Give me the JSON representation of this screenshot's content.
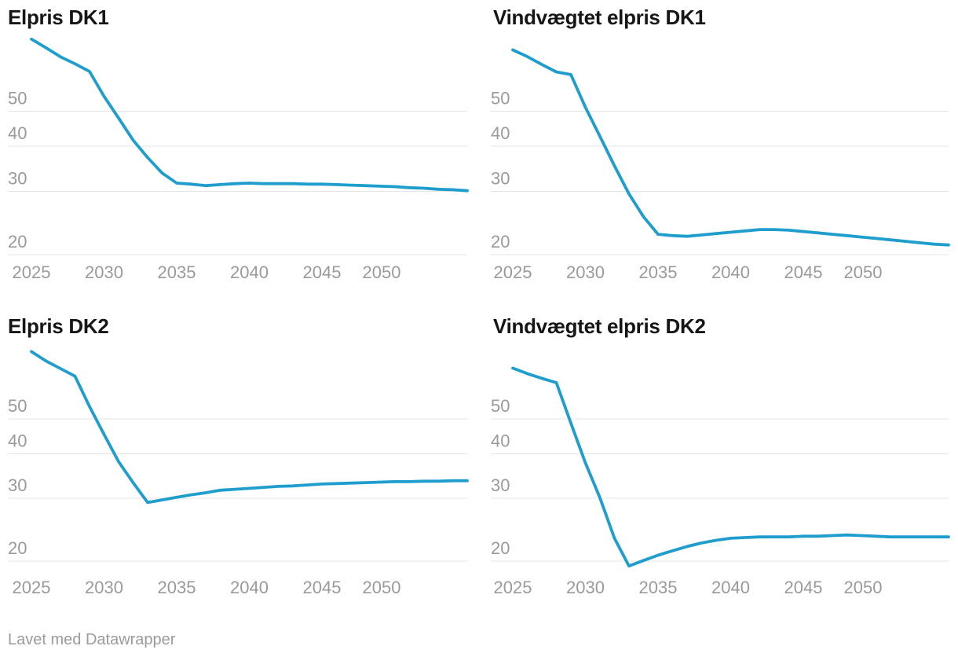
{
  "style": {
    "line_color": "#1f9ecd",
    "grid_color": "#e4e4e4",
    "axis_label_color": "#9a9a9a",
    "title_color": "#161616"
  },
  "footer": {
    "credit_text": "Lavet med Datawrapper"
  },
  "chart_data": [
    {
      "type": "line",
      "title": "Elpris DK1",
      "y_scale": "log",
      "grid": true,
      "y_ticks": [
        50,
        40,
        30,
        20
      ],
      "x_ticks": [
        2025,
        2030,
        2035,
        2040,
        2045,
        2050
      ],
      "x": [
        2025,
        2026,
        2027,
        2028,
        2029,
        2030,
        2031,
        2032,
        2033,
        2034,
        2035,
        2036,
        2037,
        2038,
        2039,
        2040,
        2041,
        2042,
        2043,
        2044,
        2045,
        2046,
        2047,
        2048,
        2049,
        2050,
        2051,
        2052,
        2053,
        2054,
        2055
      ],
      "values": [
        79.3,
        75.0,
        70.8,
        67.7,
        64.5,
        55.0,
        47.9,
        41.6,
        37.2,
        33.7,
        31.6,
        31.4,
        31.1,
        31.3,
        31.5,
        31.6,
        31.5,
        31.5,
        31.5,
        31.4,
        31.4,
        31.3,
        31.2,
        31.1,
        31.0,
        30.9,
        30.7,
        30.6,
        30.4,
        30.3,
        30.1
      ]
    },
    {
      "type": "line",
      "title": "Vindvægtet elpris DK1",
      "y_scale": "log",
      "grid": true,
      "y_ticks": [
        50,
        40,
        30,
        20
      ],
      "x_ticks": [
        2025,
        2030,
        2035,
        2040,
        2045,
        2050
      ],
      "x": [
        2025,
        2026,
        2027,
        2028,
        2029,
        2030,
        2031,
        2032,
        2033,
        2034,
        2035,
        2036,
        2037,
        2038,
        2039,
        2040,
        2041,
        2042,
        2043,
        2044,
        2045,
        2046,
        2047,
        2048,
        2049,
        2050,
        2051,
        2052,
        2053,
        2054,
        2055
      ],
      "values": [
        74.0,
        70.9,
        67.4,
        64.3,
        63.2,
        51.3,
        42.6,
        35.3,
        29.5,
        25.5,
        22.8,
        22.6,
        22.5,
        22.7,
        22.9,
        23.1,
        23.3,
        23.5,
        23.5,
        23.4,
        23.2,
        23.0,
        22.8,
        22.6,
        22.4,
        22.2,
        22.0,
        21.8,
        21.6,
        21.4,
        21.3
      ]
    },
    {
      "type": "line",
      "title": "Elpris DK2",
      "y_scale": "log",
      "grid": true,
      "y_ticks": [
        50,
        40,
        30,
        20
      ],
      "x_ticks": [
        2025,
        2030,
        2035,
        2040,
        2045,
        2050
      ],
      "x": [
        2025,
        2026,
        2027,
        2028,
        2029,
        2030,
        2031,
        2032,
        2033,
        2034,
        2035,
        2036,
        2037,
        2038,
        2039,
        2040,
        2041,
        2042,
        2043,
        2044,
        2045,
        2046,
        2047,
        2048,
        2049,
        2050,
        2051,
        2052,
        2053,
        2054,
        2055
      ],
      "values": [
        77.2,
        72.7,
        69.2,
        65.9,
        54.2,
        45.3,
        38.0,
        33.2,
        29.2,
        29.7,
        30.2,
        30.7,
        31.1,
        31.6,
        31.8,
        32.0,
        32.2,
        32.4,
        32.5,
        32.7,
        32.9,
        33.0,
        33.1,
        33.2,
        33.3,
        33.4,
        33.4,
        33.5,
        33.5,
        33.6,
        33.6
      ]
    },
    {
      "type": "line",
      "title": "Vindvægtet elpris DK2",
      "y_scale": "log",
      "grid": true,
      "y_ticks": [
        50,
        40,
        30,
        20
      ],
      "x_ticks": [
        2025,
        2030,
        2035,
        2040,
        2045,
        2050
      ],
      "x": [
        2025,
        2026,
        2027,
        2028,
        2029,
        2030,
        2031,
        2032,
        2033,
        2034,
        2035,
        2036,
        2037,
        2038,
        2039,
        2040,
        2041,
        2042,
        2043,
        2044,
        2045,
        2046,
        2047,
        2048,
        2049,
        2050,
        2051,
        2052,
        2053,
        2054,
        2055
      ],
      "values": [
        69.4,
        67.0,
        65.0,
        63.2,
        48.7,
        37.7,
        30.1,
        23.2,
        19.4,
        20.1,
        20.8,
        21.4,
        22.0,
        22.5,
        22.9,
        23.2,
        23.3,
        23.4,
        23.4,
        23.4,
        23.5,
        23.5,
        23.6,
        23.7,
        23.6,
        23.5,
        23.4,
        23.4,
        23.4,
        23.4,
        23.4
      ]
    }
  ]
}
